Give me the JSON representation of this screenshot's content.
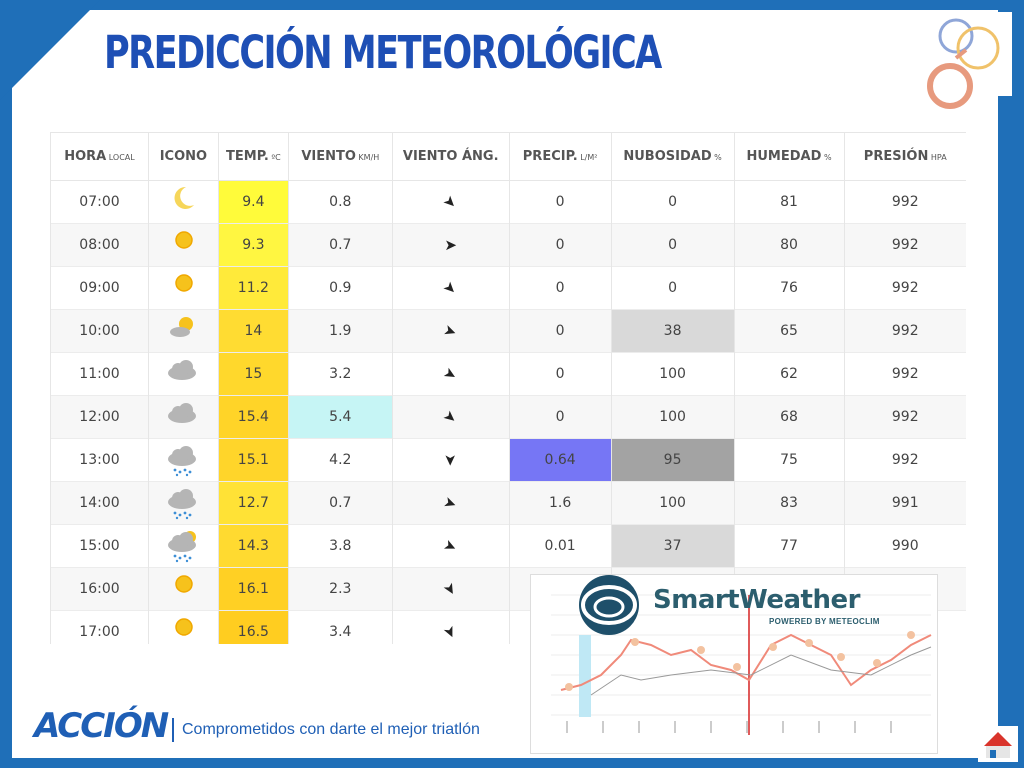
{
  "title": "PREDICCIÓN METEOROLÓGICA",
  "table": {
    "headers": [
      {
        "label": "HORA",
        "unit": "LOCAL"
      },
      {
        "label": "ICONO",
        "unit": ""
      },
      {
        "label": "TEMP.",
        "unit": "ºC"
      },
      {
        "label": "VIENTO",
        "unit": "KM/H"
      },
      {
        "label": "VIENTO ÁNG.",
        "unit": ""
      },
      {
        "label": "PRECIP.",
        "unit": "L/M²"
      },
      {
        "label": "NUBOSIDAD",
        "unit": "%"
      },
      {
        "label": "HUMEDAD",
        "unit": "%"
      },
      {
        "label": "PRESIÓN",
        "unit": "HPA"
      }
    ],
    "rows": [
      {
        "hora": "07:00",
        "icon": "moon-icon",
        "temp": "9.4",
        "viento": "0.8",
        "angle": 45,
        "precip": "0",
        "nubosidad": "0",
        "humedad": "81",
        "presion": "992",
        "temp_color": "#fffb3a",
        "viento_color": "",
        "precip_color": "",
        "nub_color": ""
      },
      {
        "hora": "08:00",
        "icon": "sun-icon",
        "temp": "9.3",
        "viento": "0.7",
        "angle": 0,
        "precip": "0",
        "nubosidad": "0",
        "humedad": "80",
        "presion": "992",
        "temp_color": "#fff641",
        "viento_color": "",
        "precip_color": "",
        "nub_color": ""
      },
      {
        "hora": "09:00",
        "icon": "sun-icon",
        "temp": "11.2",
        "viento": "0.9",
        "angle": 45,
        "precip": "0",
        "nubosidad": "0",
        "humedad": "76",
        "presion": "992",
        "temp_color": "#ffea3a",
        "viento_color": "",
        "precip_color": "",
        "nub_color": ""
      },
      {
        "hora": "10:00",
        "icon": "sun-cloud-icon",
        "temp": "14",
        "viento": "1.9",
        "angle": 20,
        "precip": "0",
        "nubosidad": "38",
        "humedad": "65",
        "presion": "992",
        "temp_color": "#ffdc32",
        "viento_color": "",
        "precip_color": "",
        "nub_color": "#d9d9d9"
      },
      {
        "hora": "11:00",
        "icon": "cloud-icon",
        "temp": "15",
        "viento": "3.2",
        "angle": 30,
        "precip": "0",
        "nubosidad": "100",
        "humedad": "62",
        "presion": "992",
        "temp_color": "#ffd82c",
        "viento_color": "",
        "precip_color": "",
        "nub_color": ""
      },
      {
        "hora": "12:00",
        "icon": "cloud-icon",
        "temp": "15.4",
        "viento": "5.4",
        "angle": 40,
        "precip": "0",
        "nubosidad": "100",
        "humedad": "68",
        "presion": "992",
        "temp_color": "#ffd428",
        "viento_color": "#c6f5f5",
        "precip_color": "",
        "nub_color": ""
      },
      {
        "hora": "13:00",
        "icon": "rain-cloud-icon",
        "temp": "15.1",
        "viento": "4.2",
        "angle": 90,
        "precip": "0.64",
        "nubosidad": "95",
        "humedad": "75",
        "presion": "992",
        "temp_color": "#ffd52a",
        "viento_color": "",
        "precip_color": "#7676f5",
        "nub_color": "#a3a3a3"
      },
      {
        "hora": "14:00",
        "icon": "rain-cloud-icon",
        "temp": "12.7",
        "viento": "0.7",
        "angle": 20,
        "precip": "1.6",
        "nubosidad": "100",
        "humedad": "83",
        "presion": "991",
        "temp_color": "#ffe236",
        "viento_color": "",
        "precip_color": "",
        "nub_color": ""
      },
      {
        "hora": "15:00",
        "icon": "rain-sun-cloud-icon",
        "temp": "14.3",
        "viento": "3.8",
        "angle": 25,
        "precip": "0.01",
        "nubosidad": "37",
        "humedad": "77",
        "presion": "990",
        "temp_color": "#ffda30",
        "viento_color": "",
        "precip_color": "",
        "nub_color": "#d9d9d9"
      },
      {
        "hora": "16:00",
        "icon": "sun-icon",
        "temp": "16.1",
        "viento": "2.3",
        "angle": 60,
        "precip": "",
        "nubosidad": "",
        "humedad": "",
        "presion": "",
        "temp_color": "#ffd024",
        "viento_color": "",
        "precip_color": "",
        "nub_color": ""
      },
      {
        "hora": "17:00",
        "icon": "sun-icon",
        "temp": "16.5",
        "viento": "3.4",
        "angle": 65,
        "precip": "",
        "nubosidad": "",
        "humedad": "",
        "presion": "",
        "temp_color": "#ffcd20",
        "viento_color": "",
        "precip_color": "",
        "nub_color": ""
      }
    ]
  },
  "smartweather": {
    "name": "SmartWeather",
    "powered": "POWERED BY METEOCLIM"
  },
  "footer": {
    "brand": "ACCIÓN",
    "slogan": "Comprometidos con darte el mejor triatlón"
  }
}
